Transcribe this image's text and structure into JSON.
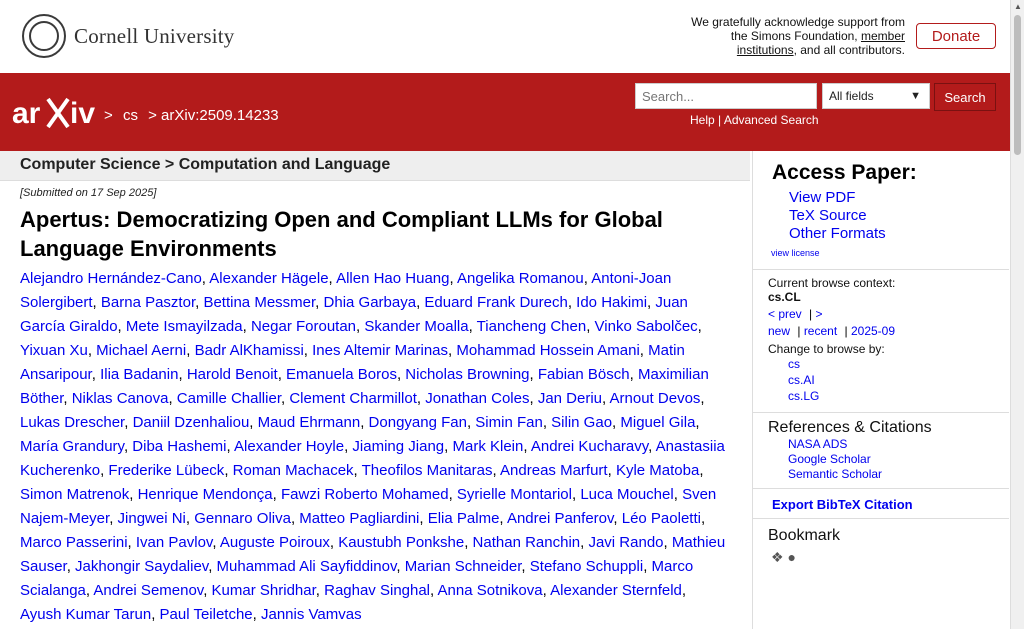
{
  "header": {
    "institution": "Cornell University",
    "ack_text_1": "We gratefully acknowledge support from the Simons Foundation,",
    "ack_member_link": "member institutions",
    "ack_text_2": ", and all contributors.",
    "donate_label": "Donate"
  },
  "nav": {
    "breadcrumb_cs": "cs",
    "breadcrumb_id": "arXiv:2509.14233",
    "search_placeholder": "Search...",
    "field_select_value": "All fields",
    "search_button": "Search",
    "help_label": "Help",
    "advanced_search_label": "Advanced Search"
  },
  "paper": {
    "subject_heading": "Computer Science > Computation and Language",
    "submitted": "[Submitted on 17 Sep 2025]",
    "title": "Apertus: Democratizing Open and Compliant LLMs for Global Language Environments",
    "authors": [
      "Alejandro Hernández-Cano",
      "Alexander Hägele",
      "Allen Hao Huang",
      "Angelika Romanou",
      "Antoni-Joan Solergibert",
      "Barna Pasztor",
      "Bettina Messmer",
      "Dhia Garbaya",
      "Eduard Frank Durech",
      "Ido Hakimi",
      "Juan García Giraldo",
      "Mete Ismayilzada",
      "Negar Foroutan",
      "Skander Moalla",
      "Tiancheng Chen",
      "Vinko Sabolčec",
      "Yixuan Xu",
      "Michael Aerni",
      "Badr AlKhamissi",
      "Ines Altemir Marinas",
      "Mohammad Hossein Amani",
      "Matin Ansaripour",
      "Ilia Badanin",
      "Harold Benoit",
      "Emanuela Boros",
      "Nicholas Browning",
      "Fabian Bösch",
      "Maximilian Böther",
      "Niklas Canova",
      "Camille Challier",
      "Clement Charmillot",
      "Jonathan Coles",
      "Jan Deriu",
      "Arnout Devos",
      "Lukas Drescher",
      "Daniil Dzenhaliou",
      "Maud Ehrmann",
      "Dongyang Fan",
      "Simin Fan",
      "Silin Gao",
      "Miguel Gila",
      "María Grandury",
      "Diba Hashemi",
      "Alexander Hoyle",
      "Jiaming Jiang",
      "Mark Klein",
      "Andrei Kucharavy",
      "Anastasiia Kucherenko",
      "Frederike Lübeck",
      "Roman Machacek",
      "Theofilos Manitaras",
      "Andreas Marfurt",
      "Kyle Matoba",
      "Simon Matrenok",
      "Henrique Mendonça",
      "Fawzi Roberto Mohamed",
      "Syrielle Montariol",
      "Luca Mouchel",
      "Sven Najem-Meyer",
      "Jingwei Ni",
      "Gennaro Oliva",
      "Matteo Pagliardini",
      "Elia Palme",
      "Andrei Panferov",
      "Léo Paoletti",
      "Marco Passerini",
      "Ivan Pavlov",
      "Auguste Poiroux",
      "Kaustubh Ponkshe",
      "Nathan Ranchin",
      "Javi Rando",
      "Mathieu Sauser",
      "Jakhongir Saydaliev",
      "Muhammad Ali Sayfiddinov",
      "Marian Schneider",
      "Stefano Schuppli",
      "Marco Scialanga",
      "Andrei Semenov",
      "Kumar Shridhar",
      "Raghav Singhal",
      "Anna Sotnikova",
      "Alexander Sternfeld",
      "Ayush Kumar Tarun",
      "Paul Teiletche",
      "Jannis Vamvas"
    ]
  },
  "sidebar": {
    "access_heading": "Access Paper:",
    "access_links": [
      "View PDF",
      "TeX Source",
      "Other Formats"
    ],
    "view_license": "view license",
    "context_label": "Current browse context:",
    "context_value": "cs.CL",
    "prev_link": "< prev",
    "next_link": ">",
    "new_link": "new",
    "recent_link": "recent",
    "month_link": "2025-09",
    "change_label": "Change to browse by:",
    "categories": [
      "cs",
      "cs.AI",
      "cs.LG"
    ],
    "refs_heading": "References & Citations",
    "ref_links": [
      "NASA ADS",
      "Google Scholar",
      "Semantic Scholar"
    ],
    "export_bibtex": "Export BibTeX Citation",
    "bookmark_heading": "Bookmark"
  },
  "colors": {
    "arxiv_red": "#b31b1b",
    "link_blue": "#0000ee"
  }
}
